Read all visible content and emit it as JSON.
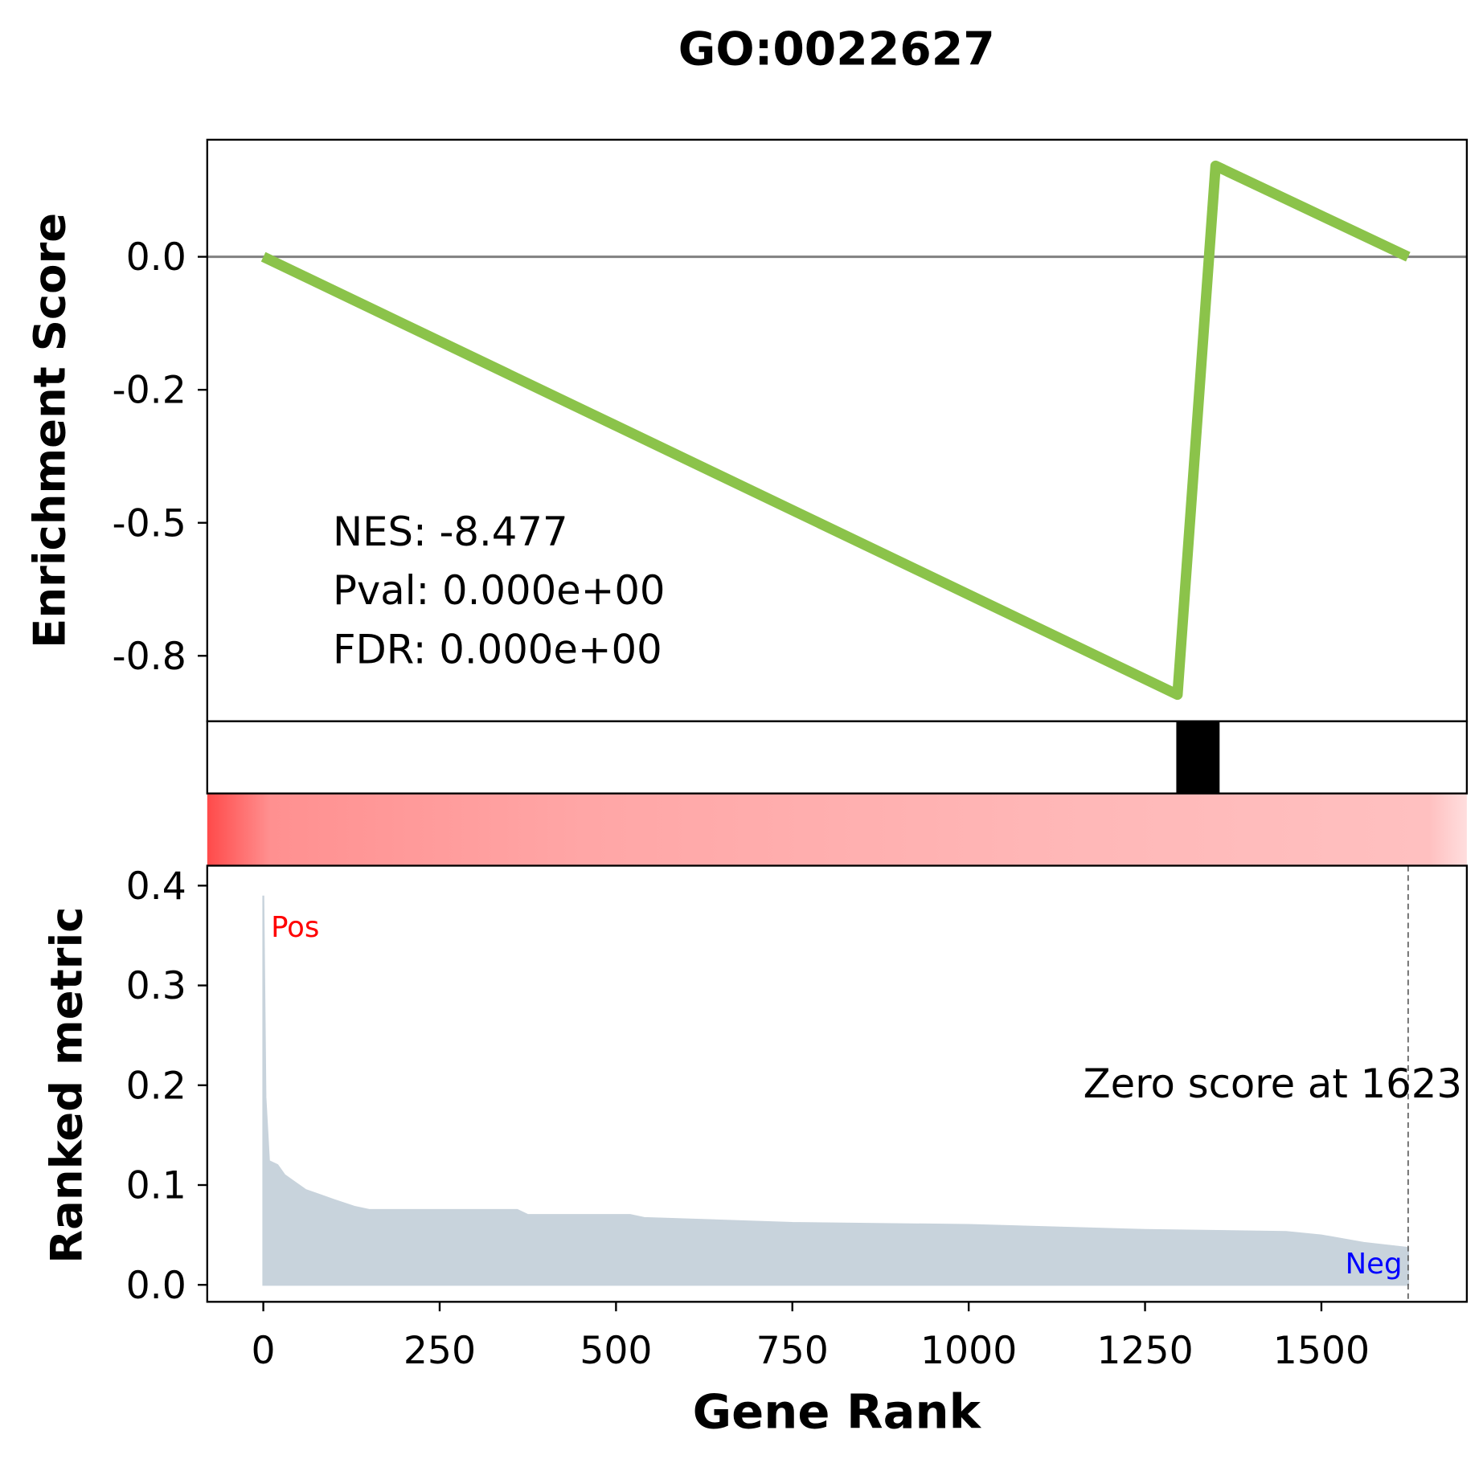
{
  "chart_data": {
    "type": "gsea",
    "title": "GO:0022627",
    "es": {
      "ylabel": "Enrichment Score",
      "x": [
        0,
        1296,
        1350,
        1623
      ],
      "values": [
        0,
        -0.823,
        0.171,
        0
      ],
      "color": "#8bc34a",
      "ylim": [
        -0.873,
        0.22
      ],
      "yticks": [
        {
          "value": 0,
          "label": "0.0"
        },
        {
          "value": -0.25,
          "label": "-0.2"
        },
        -0.5,
        {
          "value": -0.75,
          "label": "-0.8"
        }
      ],
      "annotations": [
        "NES: -8.477",
        "Pval: 0.000e+00",
        "FDR: 0.000e+00"
      ]
    },
    "hit_span": [
      1297,
      1353
    ],
    "metric": {
      "ylabel": "Ranked metric",
      "color": "#c8d3dc",
      "ranks": [
        0,
        3,
        8,
        20,
        30,
        40,
        60,
        80,
        100,
        130,
        150,
        360,
        375,
        520,
        540,
        750,
        1000,
        1250,
        1450,
        1500,
        1560,
        1623
      ],
      "values": [
        0.39,
        0.188,
        0.124,
        0.12,
        0.11,
        0.105,
        0.095,
        0.09,
        0.085,
        0.078,
        0.075,
        0.075,
        0.07,
        0.07,
        0.067,
        0.062,
        0.06,
        0.055,
        0.053,
        0.0495,
        0.042,
        0.037
      ],
      "ylim": [
        -0.017,
        0.42
      ],
      "yticks": [
        {
          "value": 0,
          "label": "0.0"
        },
        0.1,
        0.2,
        0.3,
        0.4
      ],
      "pos_label": "Pos",
      "neg_label": "Neg",
      "zero_rank": 1623,
      "zero_text": "Zero score at 1623"
    },
    "xlabel": "Gene Rank",
    "xlim": [
      -79.5,
      1706.2
    ],
    "xticks": [
      0,
      250,
      500,
      750,
      1000,
      1250,
      1500
    ]
  }
}
